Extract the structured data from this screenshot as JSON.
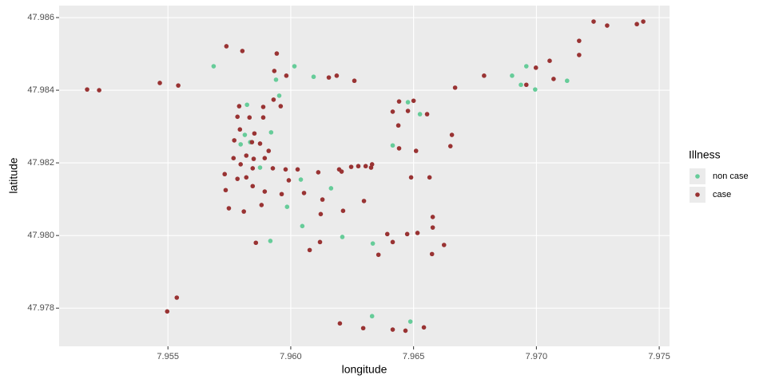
{
  "chart_data": {
    "type": "scatter",
    "x_label": "longitude",
    "y_label": "latitude",
    "legend_title": "Illness",
    "legend_position": "right",
    "grid": true,
    "xlim": [
      7.95057,
      7.97542
    ],
    "ylim": [
      47.97695,
      47.98633
    ],
    "xticks": [
      7.955,
      {
        "value": 7.96,
        "label": "7.960"
      },
      7.965,
      {
        "value": 7.97,
        "label": "7.970"
      },
      7.975
    ],
    "yticks": [
      47.978,
      {
        "value": 47.98,
        "label": "47.980"
      },
      47.982,
      47.984,
      47.986
    ],
    "series": [
      {
        "name": "non case",
        "color": "#66cc99",
        "x": [
          7.95686,
          7.96015,
          7.96093,
          7.9594,
          7.95822,
          7.95953,
          7.95813,
          7.95796,
          7.95835,
          7.9592,
          7.95875,
          7.96041,
          7.96164,
          7.95985,
          7.96047,
          7.95917,
          7.9621,
          7.96334,
          7.96415,
          7.96477,
          7.96526,
          7.96901,
          7.96959,
          7.96937,
          7.96995,
          7.97125,
          7.96331,
          7.96487
        ],
        "y": [
          47.98466,
          47.98466,
          47.98437,
          47.98429,
          47.9836,
          47.98385,
          47.98277,
          47.98251,
          47.98257,
          47.98284,
          47.98187,
          47.98154,
          47.9813,
          47.98079,
          47.98026,
          47.97985,
          47.97996,
          47.97978,
          47.98248,
          47.98367,
          47.98334,
          47.9844,
          47.98466,
          47.98415,
          47.98402,
          47.98426,
          47.97778,
          47.97763
        ]
      },
      {
        "name": "case",
        "color": "#993333",
        "x": [
          7.95171,
          7.9522,
          7.95467,
          7.95542,
          7.95738,
          7.95803,
          7.95943,
          7.95933,
          7.95982,
          7.96155,
          7.96187,
          7.96259,
          7.9579,
          7.95832,
          7.95888,
          7.95959,
          7.9593,
          7.95783,
          7.95888,
          7.95793,
          7.9577,
          7.95852,
          7.95842,
          7.95875,
          7.9591,
          7.95894,
          7.95767,
          7.95819,
          7.95796,
          7.95849,
          7.95731,
          7.95783,
          7.95819,
          7.95845,
          7.95927,
          7.95979,
          7.96028,
          7.96112,
          7.96197,
          7.96207,
          7.96246,
          7.96275,
          7.96305,
          7.96327,
          7.96331,
          7.95735,
          7.95845,
          7.95894,
          7.95963,
          7.95992,
          7.96054,
          7.96129,
          7.95748,
          7.95809,
          7.95881,
          7.96122,
          7.96213,
          7.96298,
          7.95858,
          7.96077,
          7.96119,
          7.96393,
          7.96415,
          7.96474,
          7.96516,
          7.96357,
          7.96624,
          7.96578,
          7.96578,
          7.96575,
          7.96441,
          7.965,
          7.96477,
          7.96415,
          7.96555,
          7.96438,
          7.96441,
          7.9651,
          7.9649,
          7.96565,
          7.96656,
          7.9665,
          7.962,
          7.96295,
          7.96415,
          7.96467,
          7.96542,
          7.95497,
          7.95536,
          7.96669,
          7.96787,
          7.96959,
          7.96998,
          7.97054,
          7.9707,
          7.97174,
          7.97174,
          7.97233,
          7.97288,
          7.97409,
          7.97435
        ],
        "y": [
          47.98402,
          47.984,
          47.9842,
          47.98413,
          47.98521,
          47.98508,
          47.98501,
          47.98453,
          47.9844,
          47.98435,
          47.9844,
          47.98426,
          47.98356,
          47.98325,
          47.98354,
          47.98356,
          47.98374,
          47.98327,
          47.98325,
          47.98292,
          47.98262,
          47.98281,
          47.98257,
          47.98253,
          47.98233,
          47.98213,
          47.98213,
          47.9822,
          47.98196,
          47.98211,
          47.98169,
          47.98156,
          47.9816,
          47.98185,
          47.98185,
          47.98182,
          47.98182,
          47.98174,
          47.98182,
          47.98176,
          47.98189,
          47.98191,
          47.98191,
          47.98187,
          47.98196,
          47.98125,
          47.98136,
          47.98121,
          47.98114,
          47.98152,
          47.98117,
          47.98099,
          47.98075,
          47.98066,
          47.98084,
          47.98059,
          47.98068,
          47.98095,
          47.9798,
          47.9796,
          47.97982,
          47.98004,
          47.97982,
          47.98004,
          47.98007,
          47.97947,
          47.97974,
          47.98051,
          47.98022,
          47.97949,
          47.98369,
          47.98371,
          47.98343,
          47.98341,
          47.98334,
          47.98303,
          47.9824,
          47.98233,
          47.9816,
          47.9816,
          47.98277,
          47.98246,
          47.97758,
          47.97745,
          47.97741,
          47.97738,
          47.97747,
          47.97791,
          47.97829,
          47.98407,
          47.9844,
          47.98415,
          47.98462,
          47.98481,
          47.98431,
          47.98497,
          47.98536,
          47.98589,
          47.98578,
          47.98582,
          47.98589
        ]
      }
    ]
  }
}
